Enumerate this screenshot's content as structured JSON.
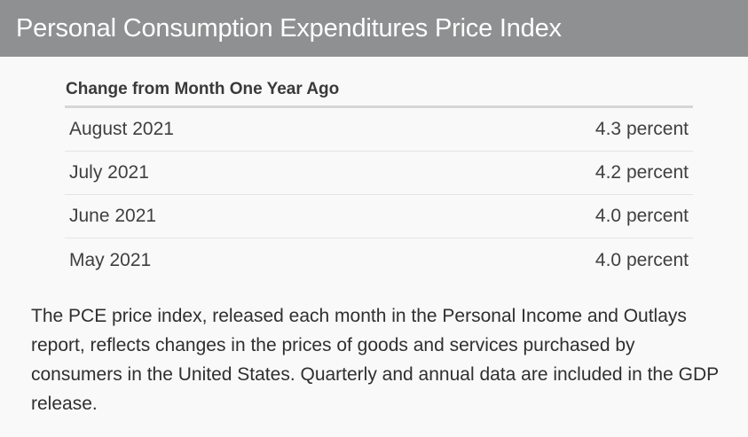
{
  "header": {
    "title": "Personal Consumption Expenditures Price Index"
  },
  "table": {
    "heading": "Change from Month One Year Ago",
    "rows": [
      {
        "period": "August 2021",
        "value": "4.3 percent"
      },
      {
        "period": "July 2021",
        "value": "4.2 percent"
      },
      {
        "period": "June 2021",
        "value": "4.0 percent"
      },
      {
        "period": "May 2021",
        "value": "4.0 percent"
      }
    ]
  },
  "description": "The PCE price index, released each month in the Personal Income and Outlays report, reflects changes in the prices of goods and services purchased by consumers in the United States. Quarterly and annual data are included in the GDP release.",
  "colors": {
    "header_background": "#8f9091",
    "header_text": "#ffffff",
    "page_background": "#f9f9f9"
  }
}
